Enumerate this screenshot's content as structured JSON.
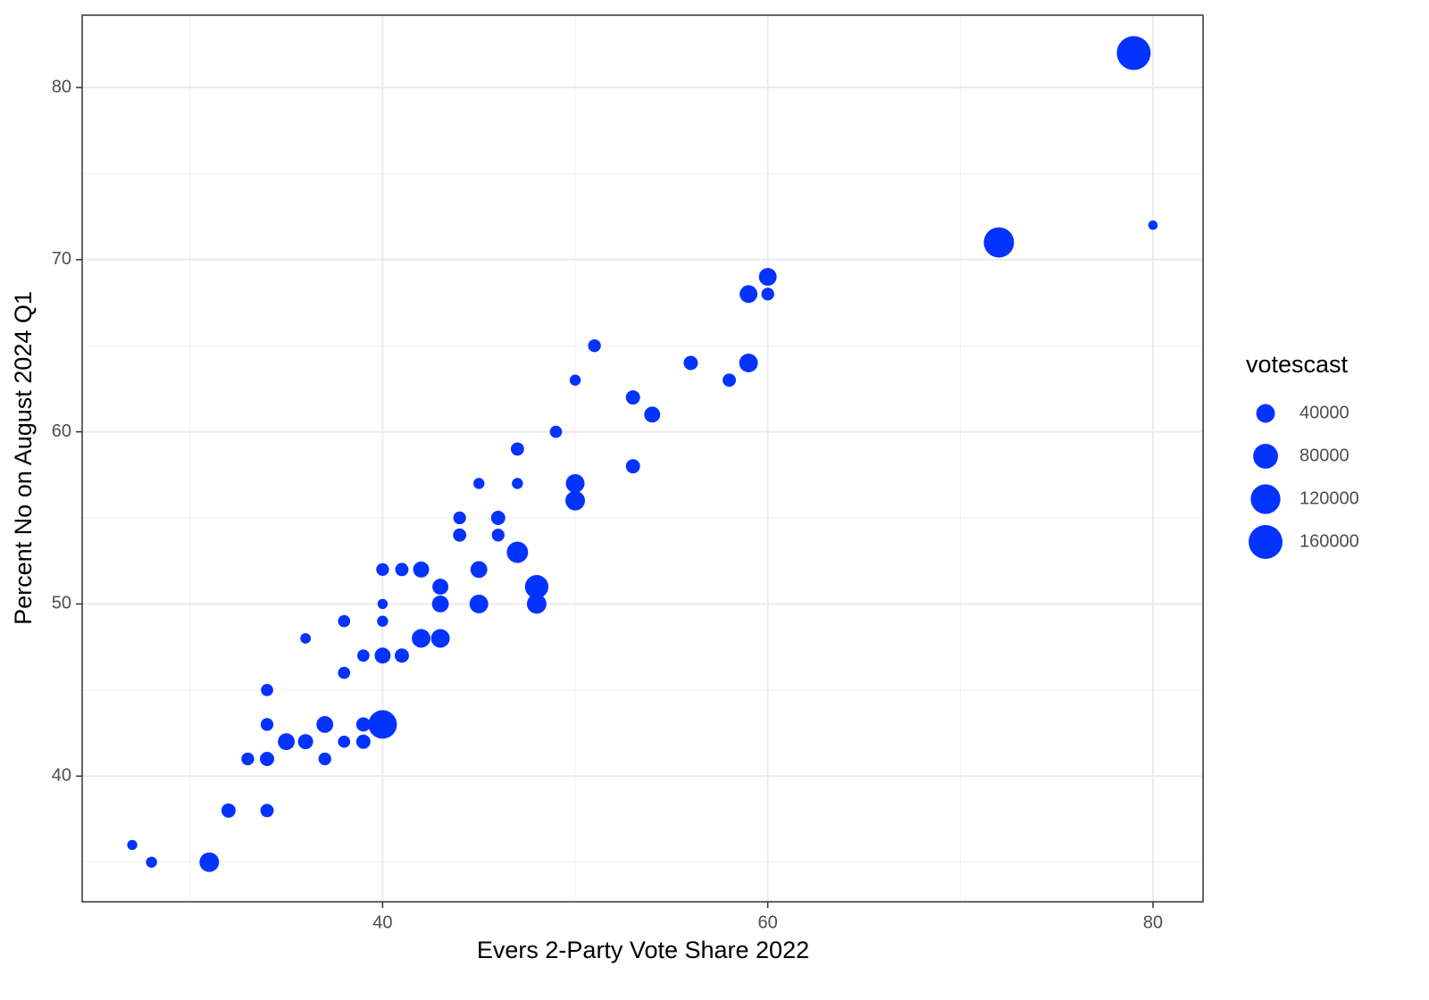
{
  "chart_data": {
    "type": "scatter",
    "x_label": "Evers 2-Party Vote Share 2022",
    "y_label": "Percent No on August 2024 Q1",
    "color": "#0433FF",
    "x": [
      27,
      28,
      31,
      32,
      33,
      34,
      34,
      34,
      34,
      35,
      36,
      36,
      37,
      37,
      38,
      38,
      38,
      39,
      39,
      39,
      40,
      40,
      40,
      40,
      40,
      41,
      41,
      42,
      42,
      43,
      43,
      43,
      44,
      44,
      45,
      45,
      45,
      46,
      46,
      47,
      47,
      47,
      48,
      48,
      49,
      50,
      50,
      50,
      51,
      53,
      53,
      54,
      56,
      58,
      59,
      59,
      60,
      60,
      72,
      79,
      80
    ],
    "y": [
      36,
      35,
      35,
      38,
      41,
      38,
      41,
      43,
      45,
      42,
      42,
      48,
      41,
      43,
      42,
      46,
      49,
      42,
      43,
      47,
      43,
      47,
      49,
      50,
      52,
      47,
      52,
      52,
      48,
      48,
      50,
      51,
      54,
      55,
      50,
      52,
      57,
      54,
      55,
      53,
      57,
      59,
      51,
      50,
      60,
      56,
      57,
      63,
      65,
      58,
      62,
      61,
      64,
      63,
      64,
      68,
      68,
      69,
      71,
      82,
      72
    ],
    "sizes": [
      3000,
      6000,
      45000,
      18000,
      12000,
      14000,
      18000,
      12000,
      10000,
      30000,
      22000,
      4000,
      12000,
      30000,
      10000,
      10000,
      10000,
      18000,
      18000,
      10000,
      110000,
      26000,
      6000,
      3000,
      12000,
      18000,
      14000,
      26000,
      40000,
      40000,
      30000,
      26000,
      14000,
      12000,
      40000,
      30000,
      6000,
      12000,
      18000,
      56000,
      6000,
      14000,
      70000,
      45000,
      10000,
      45000,
      40000,
      6000,
      12000,
      18000,
      18000,
      26000,
      18000,
      14000,
      40000,
      35000,
      12000,
      35000,
      125000,
      160000,
      1000
    ],
    "size_legend": {
      "title": "votescast",
      "values": [
        40000,
        80000,
        120000,
        160000
      ]
    },
    "xlim": [
      24.4,
      82.6
    ],
    "ylim": [
      32.7,
      84.2
    ],
    "xticks": [
      40,
      60,
      80
    ],
    "yticks": [
      40,
      50,
      60,
      70,
      80
    ],
    "x_minor_ticks": [
      30,
      50,
      70
    ],
    "y_minor_ticks": [
      35,
      45,
      55,
      65,
      75
    ],
    "grid": true
  }
}
